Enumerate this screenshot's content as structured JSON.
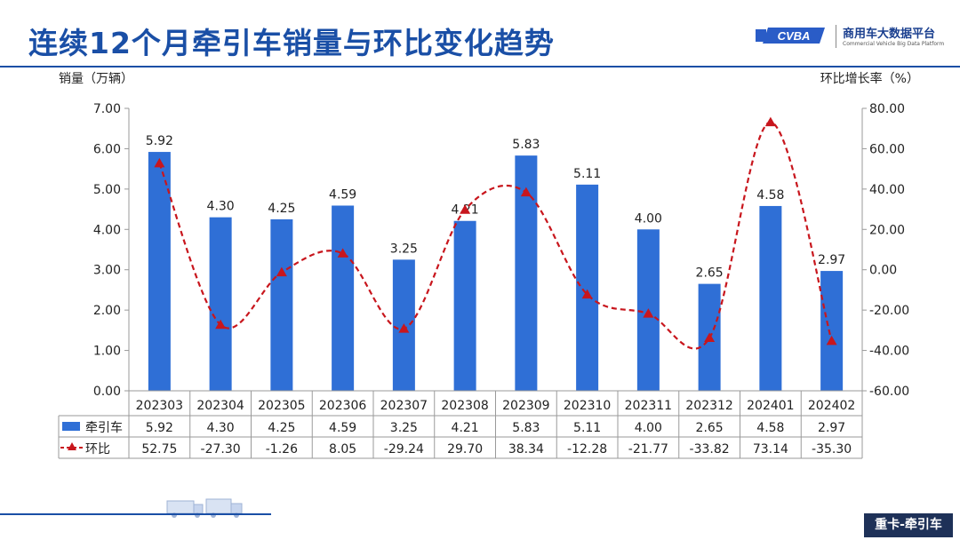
{
  "header": {
    "title": "连续12个月牵引车销量与环比变化趋势"
  },
  "logo": {
    "cn": "商用车大数据平台",
    "en": "Commercial Vehicle Big Data Platform",
    "mark": "CVBA"
  },
  "footer": {
    "tag": "重卡-牵引车"
  },
  "colors": {
    "bar": "#2f6fd6",
    "line": "#c8161d",
    "title": "#1a4fa6",
    "tag_bg": "#1e3158"
  },
  "chart_data": {
    "type": "bar+line",
    "categories": [
      "202303",
      "202304",
      "202305",
      "202306",
      "202307",
      "202308",
      "202309",
      "202310",
      "202311",
      "202312",
      "202401",
      "202402"
    ],
    "y_left": {
      "label": "销量（万辆）",
      "ticks": [
        "7.00",
        "6.00",
        "5.00",
        "4.00",
        "3.00",
        "2.00",
        "1.00",
        "0.00"
      ],
      "range": [
        0,
        7
      ]
    },
    "y_right": {
      "label": "环比增长率（%）",
      "ticks": [
        "80.00",
        "60.00",
        "40.00",
        "20.00",
        "0.00",
        "-20.00",
        "-40.00",
        "-60.00"
      ],
      "range": [
        -60,
        80
      ]
    },
    "series": [
      {
        "name": "牵引车",
        "type": "bar",
        "axis": "left",
        "values": [
          5.92,
          4.3,
          4.25,
          4.59,
          3.25,
          4.21,
          5.83,
          5.11,
          4.0,
          2.65,
          4.58,
          2.97
        ],
        "labels": [
          "5.92",
          "4.30",
          "4.25",
          "4.59",
          "3.25",
          "4.21",
          "5.83",
          "5.11",
          "4.00",
          "2.65",
          "4.58",
          "2.97"
        ]
      },
      {
        "name": "环比",
        "type": "line",
        "axis": "right",
        "style": "dashed",
        "marker": "triangle",
        "values": [
          52.75,
          -27.3,
          -1.26,
          8.05,
          -29.24,
          29.7,
          38.34,
          -12.28,
          -21.77,
          -33.82,
          73.14,
          -35.3
        ],
        "labels": [
          "52.75",
          "-27.30",
          "-1.26",
          "8.05",
          "-29.24",
          "29.70",
          "38.34",
          "-12.28",
          "-21.77",
          "-33.82",
          "73.14",
          "-35.30"
        ]
      }
    ],
    "data_table": true,
    "grid": false
  }
}
